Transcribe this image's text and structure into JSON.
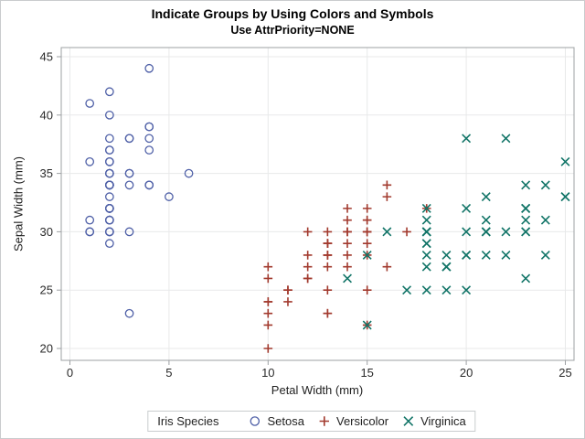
{
  "header": {
    "title": "Indicate Groups by Using Colors and Symbols",
    "subtitle": "Use AttrPriority=NONE"
  },
  "chart_data": {
    "type": "scatter",
    "title": "Indicate Groups by Using Colors and Symbols",
    "subtitle": "Use AttrPriority=NONE",
    "xlabel": "Petal Width (mm)",
    "ylabel": "Sepal Width (mm)",
    "xlim": [
      0,
      25
    ],
    "ylim": [
      20,
      45
    ],
    "xticks": [
      0,
      5,
      10,
      15,
      20,
      25
    ],
    "yticks": [
      20,
      25,
      30,
      35,
      40,
      45
    ],
    "grid": true,
    "legend": {
      "title": "Iris Species",
      "position": "bottom"
    },
    "series": [
      {
        "name": "Setosa",
        "marker": "circle",
        "color": "#4F60A7",
        "points": [
          [
            2,
            35
          ],
          [
            2,
            30
          ],
          [
            2,
            32
          ],
          [
            2,
            31
          ],
          [
            2,
            36
          ],
          [
            4,
            39
          ],
          [
            3,
            34
          ],
          [
            2,
            34
          ],
          [
            2,
            29
          ],
          [
            1,
            31
          ],
          [
            2,
            37
          ],
          [
            2,
            34
          ],
          [
            1,
            30
          ],
          [
            1,
            30
          ],
          [
            2,
            40
          ],
          [
            4,
            44
          ],
          [
            4,
            39
          ],
          [
            3,
            35
          ],
          [
            3,
            38
          ],
          [
            3,
            38
          ],
          [
            2,
            34
          ],
          [
            4,
            37
          ],
          [
            2,
            36
          ],
          [
            5,
            33
          ],
          [
            2,
            34
          ],
          [
            2,
            30
          ],
          [
            4,
            34
          ],
          [
            2,
            35
          ],
          [
            2,
            34
          ],
          [
            2,
            32
          ],
          [
            2,
            31
          ],
          [
            4,
            34
          ],
          [
            1,
            41
          ],
          [
            2,
            42
          ],
          [
            2,
            31
          ],
          [
            2,
            32
          ],
          [
            2,
            35
          ],
          [
            1,
            36
          ],
          [
            2,
            30
          ],
          [
            2,
            34
          ],
          [
            3,
            35
          ],
          [
            3,
            23
          ],
          [
            2,
            32
          ],
          [
            6,
            35
          ],
          [
            4,
            38
          ],
          [
            3,
            30
          ],
          [
            2,
            38
          ],
          [
            2,
            32
          ],
          [
            2,
            37
          ],
          [
            2,
            33
          ]
        ]
      },
      {
        "name": "Versicolor",
        "marker": "plus",
        "color": "#A23A2E",
        "points": [
          [
            14,
            32
          ],
          [
            15,
            32
          ],
          [
            15,
            31
          ],
          [
            13,
            23
          ],
          [
            15,
            28
          ],
          [
            13,
            28
          ],
          [
            16,
            33
          ],
          [
            10,
            24
          ],
          [
            13,
            29
          ],
          [
            14,
            27
          ],
          [
            10,
            20
          ],
          [
            15,
            30
          ],
          [
            10,
            22
          ],
          [
            14,
            29
          ],
          [
            13,
            29
          ],
          [
            14,
            31
          ],
          [
            15,
            30
          ],
          [
            10,
            27
          ],
          [
            15,
            22
          ],
          [
            11,
            25
          ],
          [
            18,
            32
          ],
          [
            13,
            28
          ],
          [
            15,
            25
          ],
          [
            12,
            28
          ],
          [
            13,
            29
          ],
          [
            14,
            30
          ],
          [
            14,
            28
          ],
          [
            17,
            30
          ],
          [
            15,
            29
          ],
          [
            10,
            26
          ],
          [
            11,
            24
          ],
          [
            10,
            24
          ],
          [
            12,
            27
          ],
          [
            16,
            27
          ],
          [
            15,
            30
          ],
          [
            16,
            34
          ],
          [
            15,
            31
          ],
          [
            13,
            23
          ],
          [
            13,
            30
          ],
          [
            13,
            25
          ],
          [
            12,
            26
          ],
          [
            14,
            30
          ],
          [
            12,
            26
          ],
          [
            10,
            23
          ],
          [
            13,
            27
          ],
          [
            12,
            30
          ],
          [
            13,
            29
          ],
          [
            13,
            29
          ],
          [
            11,
            25
          ],
          [
            13,
            28
          ]
        ]
      },
      {
        "name": "Virginica",
        "marker": "x",
        "color": "#117467",
        "points": [
          [
            25,
            33
          ],
          [
            19,
            27
          ],
          [
            21,
            30
          ],
          [
            18,
            29
          ],
          [
            22,
            30
          ],
          [
            21,
            30
          ],
          [
            17,
            25
          ],
          [
            18,
            29
          ],
          [
            18,
            25
          ],
          [
            25,
            36
          ],
          [
            20,
            32
          ],
          [
            19,
            27
          ],
          [
            21,
            30
          ],
          [
            20,
            25
          ],
          [
            24,
            28
          ],
          [
            23,
            32
          ],
          [
            18,
            30
          ],
          [
            22,
            38
          ],
          [
            23,
            26
          ],
          [
            15,
            22
          ],
          [
            23,
            32
          ],
          [
            20,
            28
          ],
          [
            20,
            28
          ],
          [
            18,
            27
          ],
          [
            21,
            33
          ],
          [
            18,
            32
          ],
          [
            18,
            28
          ],
          [
            18,
            30
          ],
          [
            21,
            28
          ],
          [
            16,
            30
          ],
          [
            19,
            28
          ],
          [
            20,
            38
          ],
          [
            22,
            28
          ],
          [
            15,
            28
          ],
          [
            14,
            26
          ],
          [
            23,
            30
          ],
          [
            24,
            34
          ],
          [
            18,
            31
          ],
          [
            18,
            30
          ],
          [
            21,
            31
          ],
          [
            24,
            31
          ],
          [
            23,
            31
          ],
          [
            19,
            27
          ],
          [
            23,
            32
          ],
          [
            25,
            33
          ],
          [
            23,
            30
          ],
          [
            19,
            25
          ],
          [
            20,
            30
          ],
          [
            23,
            34
          ],
          [
            18,
            30
          ]
        ]
      }
    ]
  }
}
